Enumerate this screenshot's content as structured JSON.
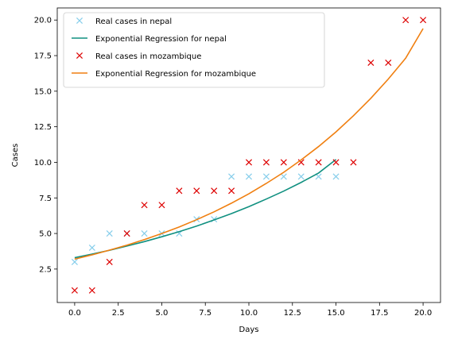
{
  "chart_data": {
    "type": "scatter",
    "title": "",
    "xlabel": "Days",
    "ylabel": "Cases",
    "xlim": [
      -1,
      21
    ],
    "ylim": [
      0.15,
      20.85
    ],
    "xticks": [
      0.0,
      2.5,
      5.0,
      7.5,
      10.0,
      12.5,
      15.0,
      17.5,
      20.0
    ],
    "xtick_labels": [
      "0.0",
      "2.5",
      "5.0",
      "7.5",
      "10.0",
      "12.5",
      "15.0",
      "17.5",
      "20.0"
    ],
    "yticks": [
      2.5,
      5.0,
      7.5,
      10.0,
      12.5,
      15.0,
      17.5,
      20.0
    ],
    "ytick_labels": [
      "2.5",
      "5.0",
      "7.5",
      "10.0",
      "12.5",
      "15.0",
      "17.5",
      "20.0"
    ],
    "grid": false,
    "legend_position": "top-left",
    "series": [
      {
        "name": "Real cases in nepal",
        "kind": "points",
        "marker": "x",
        "color": "#87ceeb",
        "x": [
          0,
          1,
          2,
          3,
          4,
          5,
          6,
          7,
          8,
          9,
          10,
          11,
          12,
          13,
          14,
          15
        ],
        "y": [
          3,
          4,
          5,
          5,
          5,
          5,
          5,
          6,
          6,
          9,
          9,
          9,
          9,
          9,
          9,
          9
        ]
      },
      {
        "name": "Exponential Regression for nepal",
        "kind": "line",
        "color": "#109080",
        "x": [
          0,
          1,
          2,
          3,
          4,
          5,
          6,
          7,
          8,
          9,
          10,
          11,
          12,
          13,
          14,
          15
        ],
        "y": [
          3.3,
          3.55,
          3.82,
          4.12,
          4.43,
          4.77,
          5.13,
          5.52,
          5.95,
          6.4,
          6.89,
          7.42,
          7.98,
          8.59,
          9.25,
          10.2
        ]
      },
      {
        "name": "Real cases in mozambique",
        "kind": "points",
        "marker": "x",
        "color": "#dd0000",
        "x": [
          0,
          1,
          2,
          3,
          4,
          5,
          6,
          7,
          8,
          9,
          10,
          11,
          12,
          13,
          14,
          15,
          16,
          17,
          18,
          19,
          20
        ],
        "y": [
          1,
          1,
          3,
          5,
          7,
          7,
          8,
          8,
          8,
          8,
          10,
          10,
          10,
          10,
          10,
          10,
          10,
          17,
          17,
          20,
          20
        ]
      },
      {
        "name": "Exponential Regression for mozambique",
        "kind": "line",
        "color": "#f07f10",
        "x": [
          0,
          1,
          2,
          3,
          4,
          5,
          6,
          7,
          8,
          9,
          10,
          11,
          12,
          13,
          14,
          15,
          16,
          17,
          18,
          19,
          20
        ],
        "y": [
          3.2,
          3.5,
          3.83,
          4.18,
          4.57,
          5.0,
          5.46,
          5.97,
          6.52,
          7.13,
          7.79,
          8.52,
          9.3,
          10.17,
          11.11,
          12.14,
          13.27,
          14.5,
          15.85,
          17.32,
          19.4
        ]
      }
    ]
  }
}
